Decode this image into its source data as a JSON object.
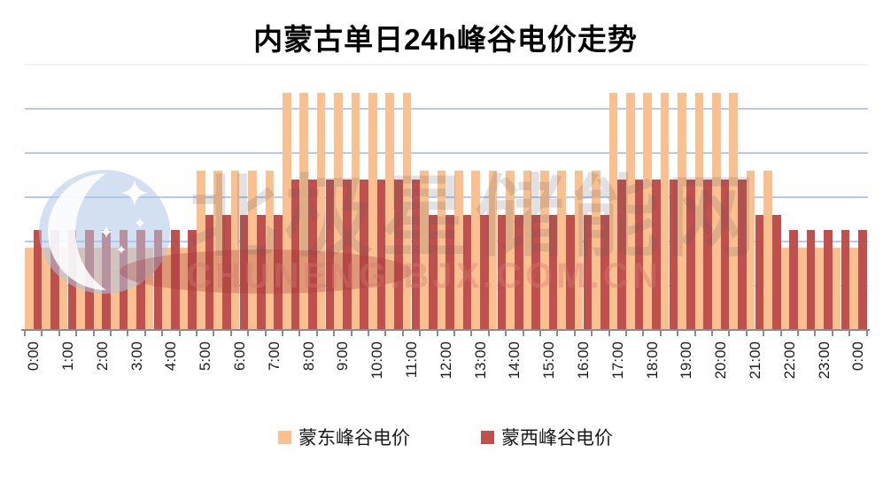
{
  "title": "内蒙古单日24h峰谷电价走势",
  "legend": [
    {
      "key": "mengdong",
      "label": "蒙东峰谷电价",
      "color": "#FAC090"
    },
    {
      "key": "mengxi",
      "label": "蒙西峰谷电价",
      "color": "#C0504D"
    }
  ],
  "watermark": {
    "cjk_text": "北极星储能网",
    "latin_text": "CHUNENG.BJX.COM.CN"
  },
  "axis": {
    "x_tick_labels": [
      "0:00",
      "1:00",
      "2:00",
      "3:00",
      "4:00",
      "5:00",
      "6:00",
      "7:00",
      "8:00",
      "9:00",
      "10:00",
      "11:00",
      "12:00",
      "13:00",
      "14:00",
      "15:00",
      "16:00",
      "17:00",
      "18:00",
      "19:00",
      "20:00",
      "21:00",
      "22:00",
      "23:00",
      "0:00"
    ],
    "y_tick_labels_shown": false
  },
  "colors": {
    "background": "#FFFFFF",
    "gridline": "#B7C8E8",
    "axis_line": "#8C8C8C",
    "title_text": "#000000",
    "label_text": "#1A1A1A",
    "mengdong_bar": "#FAC090",
    "mengxi_bar": "#C0504D"
  },
  "chart_data": {
    "type": "bar",
    "title": "内蒙古单日24h峰谷电价走势",
    "x": [
      "0:00",
      "0:30",
      "1:00",
      "1:30",
      "2:00",
      "2:30",
      "3:00",
      "3:30",
      "4:00",
      "4:30",
      "5:00",
      "5:30",
      "6:00",
      "6:30",
      "7:00",
      "7:30",
      "8:00",
      "8:30",
      "9:00",
      "9:30",
      "10:00",
      "10:30",
      "11:00",
      "11:30",
      "12:00",
      "12:30",
      "13:00",
      "13:30",
      "14:00",
      "14:30",
      "15:00",
      "15:30",
      "16:00",
      "16:30",
      "17:00",
      "17:30",
      "18:00",
      "18:30",
      "19:00",
      "19:30",
      "20:00",
      "20:30",
      "21:00",
      "21:30",
      "22:00",
      "22:30",
      "23:00",
      "23:30",
      "0:00"
    ],
    "x_label_interval": 2,
    "series": [
      {
        "name": "蒙东峰谷电价",
        "key": "mengdong",
        "color": "#FAC090",
        "values": [
          0.37,
          0.37,
          0.37,
          0.37,
          0.37,
          0.37,
          0.37,
          0.37,
          0.37,
          0.37,
          0.72,
          0.72,
          0.72,
          0.72,
          0.72,
          1.07,
          1.07,
          1.07,
          1.07,
          1.07,
          1.07,
          1.07,
          1.07,
          0.72,
          0.72,
          0.72,
          0.72,
          0.72,
          0.72,
          0.72,
          0.72,
          0.72,
          0.72,
          0.72,
          1.07,
          1.07,
          1.07,
          1.07,
          1.07,
          1.07,
          1.07,
          1.07,
          0.72,
          0.72,
          0.37,
          0.37,
          0.37,
          0.37,
          0.37
        ]
      },
      {
        "name": "蒙西峰谷电价",
        "key": "mengxi",
        "color": "#C0504D",
        "values": [
          0.45,
          0.45,
          0.45,
          0.45,
          0.45,
          0.45,
          0.45,
          0.45,
          0.45,
          0.45,
          0.52,
          0.52,
          0.52,
          0.52,
          0.52,
          0.68,
          0.68,
          0.68,
          0.68,
          0.68,
          0.68,
          0.68,
          0.68,
          0.52,
          0.52,
          0.52,
          0.52,
          0.52,
          0.52,
          0.52,
          0.52,
          0.52,
          0.52,
          0.52,
          0.68,
          0.68,
          0.68,
          0.68,
          0.68,
          0.68,
          0.68,
          0.68,
          0.52,
          0.52,
          0.45,
          0.45,
          0.45,
          0.45,
          0.45
        ]
      }
    ],
    "xlabel": "",
    "ylabel": "",
    "ylim": [
      0,
      1.2
    ],
    "y_gridlines": [
      0.2,
      0.4,
      0.6,
      0.8,
      1.0,
      1.2
    ],
    "y_axis_labeled": false,
    "values_estimated_from_gridlines": true,
    "grid": true,
    "legend_position": "bottom",
    "bar_gap": 0
  }
}
